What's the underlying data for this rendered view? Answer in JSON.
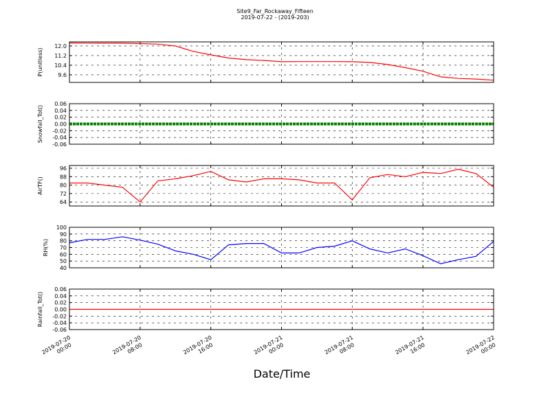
{
  "figure": {
    "title": "Site9_Far_Rockaway_Fifteen",
    "subtitle": "2019-07-22 - (2019-203)",
    "xlabel": "Date/Time",
    "x": [
      "2019-07-20 00:00",
      "2019-07-20 02:00",
      "2019-07-20 04:00",
      "2019-07-20 06:00",
      "2019-07-20 08:00",
      "2019-07-20 10:00",
      "2019-07-20 12:00",
      "2019-07-20 14:00",
      "2019-07-20 16:00",
      "2019-07-20 18:00",
      "2019-07-20 20:00",
      "2019-07-20 22:00",
      "2019-07-21 00:00",
      "2019-07-21 02:00",
      "2019-07-21 04:00",
      "2019-07-21 06:00",
      "2019-07-21 08:00",
      "2019-07-21 10:00",
      "2019-07-21 12:00",
      "2019-07-21 14:00",
      "2019-07-21 16:00",
      "2019-07-21 18:00",
      "2019-07-21 20:00",
      "2019-07-21 22:00",
      "2019-07-22 00:00"
    ],
    "xlim": [
      "2019-07-20 00:00",
      "2019-07-22 00:00"
    ],
    "xticks": [
      "2019-07-20 00:00",
      "2019-07-20 08:00",
      "2019-07-20 16:00",
      "2019-07-21 00:00",
      "2019-07-21 08:00",
      "2019-07-21 16:00",
      "2019-07-22 00:00"
    ]
  },
  "chart_data": [
    {
      "type": "line",
      "ylabel": "P(unitless)",
      "color": "#ff0000",
      "values": [
        12.25,
        12.24,
        12.23,
        12.23,
        12.2,
        12.15,
        12.0,
        11.55,
        11.26,
        11.0,
        10.86,
        10.8,
        10.69,
        10.7,
        10.7,
        10.7,
        10.69,
        10.63,
        10.46,
        10.2,
        9.9,
        9.43,
        9.3,
        9.25,
        9.15
      ],
      "ylim": [
        8.97,
        12.34
      ],
      "yticks": [
        9.6,
        10.4,
        11.2,
        {
          "value": 12,
          "label": "12.0"
        }
      ],
      "grid": true
    },
    {
      "type": "line",
      "ylabel": "Snowfall_Tot()",
      "color": "#008000",
      "values": [
        0,
        0,
        0,
        0,
        0,
        0,
        0,
        0,
        0,
        0,
        0,
        0,
        0,
        0,
        0,
        0,
        0,
        0,
        0,
        0,
        0,
        0,
        0,
        0,
        0
      ],
      "ylim": [
        -0.06,
        0.06
      ],
      "yticks": [
        -0.06,
        -0.04,
        -0.02,
        {
          "value": 0,
          "label": "0.00"
        },
        0.02,
        0.04,
        0.06
      ],
      "grid": true
    },
    {
      "type": "line",
      "ylabel": "AirTF()",
      "color": "#ff0000",
      "values": [
        82,
        82,
        80,
        78,
        64,
        84,
        86,
        89,
        93,
        85,
        83,
        86,
        86,
        85,
        82,
        82,
        66,
        87,
        90,
        88,
        92,
        91,
        95,
        91,
        78
      ],
      "ylim": [
        60.2,
        98.6
      ],
      "yticks": [
        64,
        72,
        80,
        88,
        96
      ],
      "grid": true
    },
    {
      "type": "line",
      "ylabel": "RH(%)",
      "color": "#0000ff",
      "values": [
        77,
        82,
        82,
        86,
        81,
        75,
        65,
        60,
        52,
        74,
        76,
        76,
        62,
        62,
        70,
        72,
        80,
        68,
        62,
        68,
        58,
        46,
        52,
        57,
        79
      ],
      "ylim": [
        40,
        100
      ],
      "yticks": [
        40,
        50,
        60,
        70,
        80,
        90,
        100
      ],
      "grid": true
    },
    {
      "type": "line",
      "ylabel": "Rainfall_Tot()",
      "color": "#ff0000",
      "values": [
        0,
        0,
        0,
        0,
        0,
        0,
        0,
        0,
        0,
        0,
        0,
        0,
        0,
        0,
        0,
        0,
        0,
        0,
        0,
        0,
        0,
        0,
        0,
        0,
        0
      ],
      "ylim": [
        -0.06,
        0.06
      ],
      "yticks": [
        -0.06,
        -0.04,
        -0.02,
        {
          "value": 0,
          "label": "0.00"
        },
        0.02,
        0.04,
        0.06
      ],
      "grid": true
    }
  ]
}
